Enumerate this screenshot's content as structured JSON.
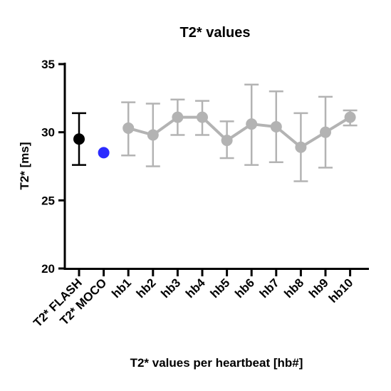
{
  "chart_data": {
    "type": "scatter",
    "title": "T2* values",
    "xlabel": "T2* values per heartbeat [hb#]",
    "ylabel": "T2* [ms]",
    "ylim": [
      20,
      35
    ],
    "yticks": [
      "20",
      "25",
      "30",
      "35"
    ],
    "categories": [
      "T2* FLASH",
      "T2* MOCO",
      "hb1",
      "hb2",
      "hb3",
      "hb4",
      "hb5",
      "hb6",
      "hb7",
      "hb8",
      "hb9",
      "hb10"
    ],
    "series": [
      {
        "color": "#000000",
        "connected": false,
        "points": [
          {
            "x": "T2* FLASH",
            "y": 29.5,
            "err_low": 27.6,
            "err_high": 31.4
          }
        ]
      },
      {
        "color": "#2b2bff",
        "connected": false,
        "points": [
          {
            "x": "T2* MOCO",
            "y": 28.5
          }
        ]
      },
      {
        "color": "#b3b3b3",
        "connected": true,
        "points": [
          {
            "x": "hb1",
            "y": 30.3,
            "err_low": 28.3,
            "err_high": 32.2
          },
          {
            "x": "hb2",
            "y": 29.8,
            "err_low": 27.5,
            "err_high": 32.1
          },
          {
            "x": "hb3",
            "y": 31.1,
            "err_low": 29.8,
            "err_high": 32.4
          },
          {
            "x": "hb4",
            "y": 31.1,
            "err_low": 29.8,
            "err_high": 32.3
          },
          {
            "x": "hb5",
            "y": 29.4,
            "err_low": 28.1,
            "err_high": 30.8
          },
          {
            "x": "hb6",
            "y": 30.6,
            "err_low": 27.6,
            "err_high": 33.5
          },
          {
            "x": "hb7",
            "y": 30.4,
            "err_low": 27.8,
            "err_high": 33.0
          },
          {
            "x": "hb8",
            "y": 28.9,
            "err_low": 26.4,
            "err_high": 31.4
          },
          {
            "x": "hb9",
            "y": 30.0,
            "err_low": 27.4,
            "err_high": 32.6
          },
          {
            "x": "hb10",
            "y": 31.1,
            "err_low": 30.5,
            "err_high": 31.6
          }
        ]
      }
    ],
    "grid": false,
    "legend": "none"
  }
}
